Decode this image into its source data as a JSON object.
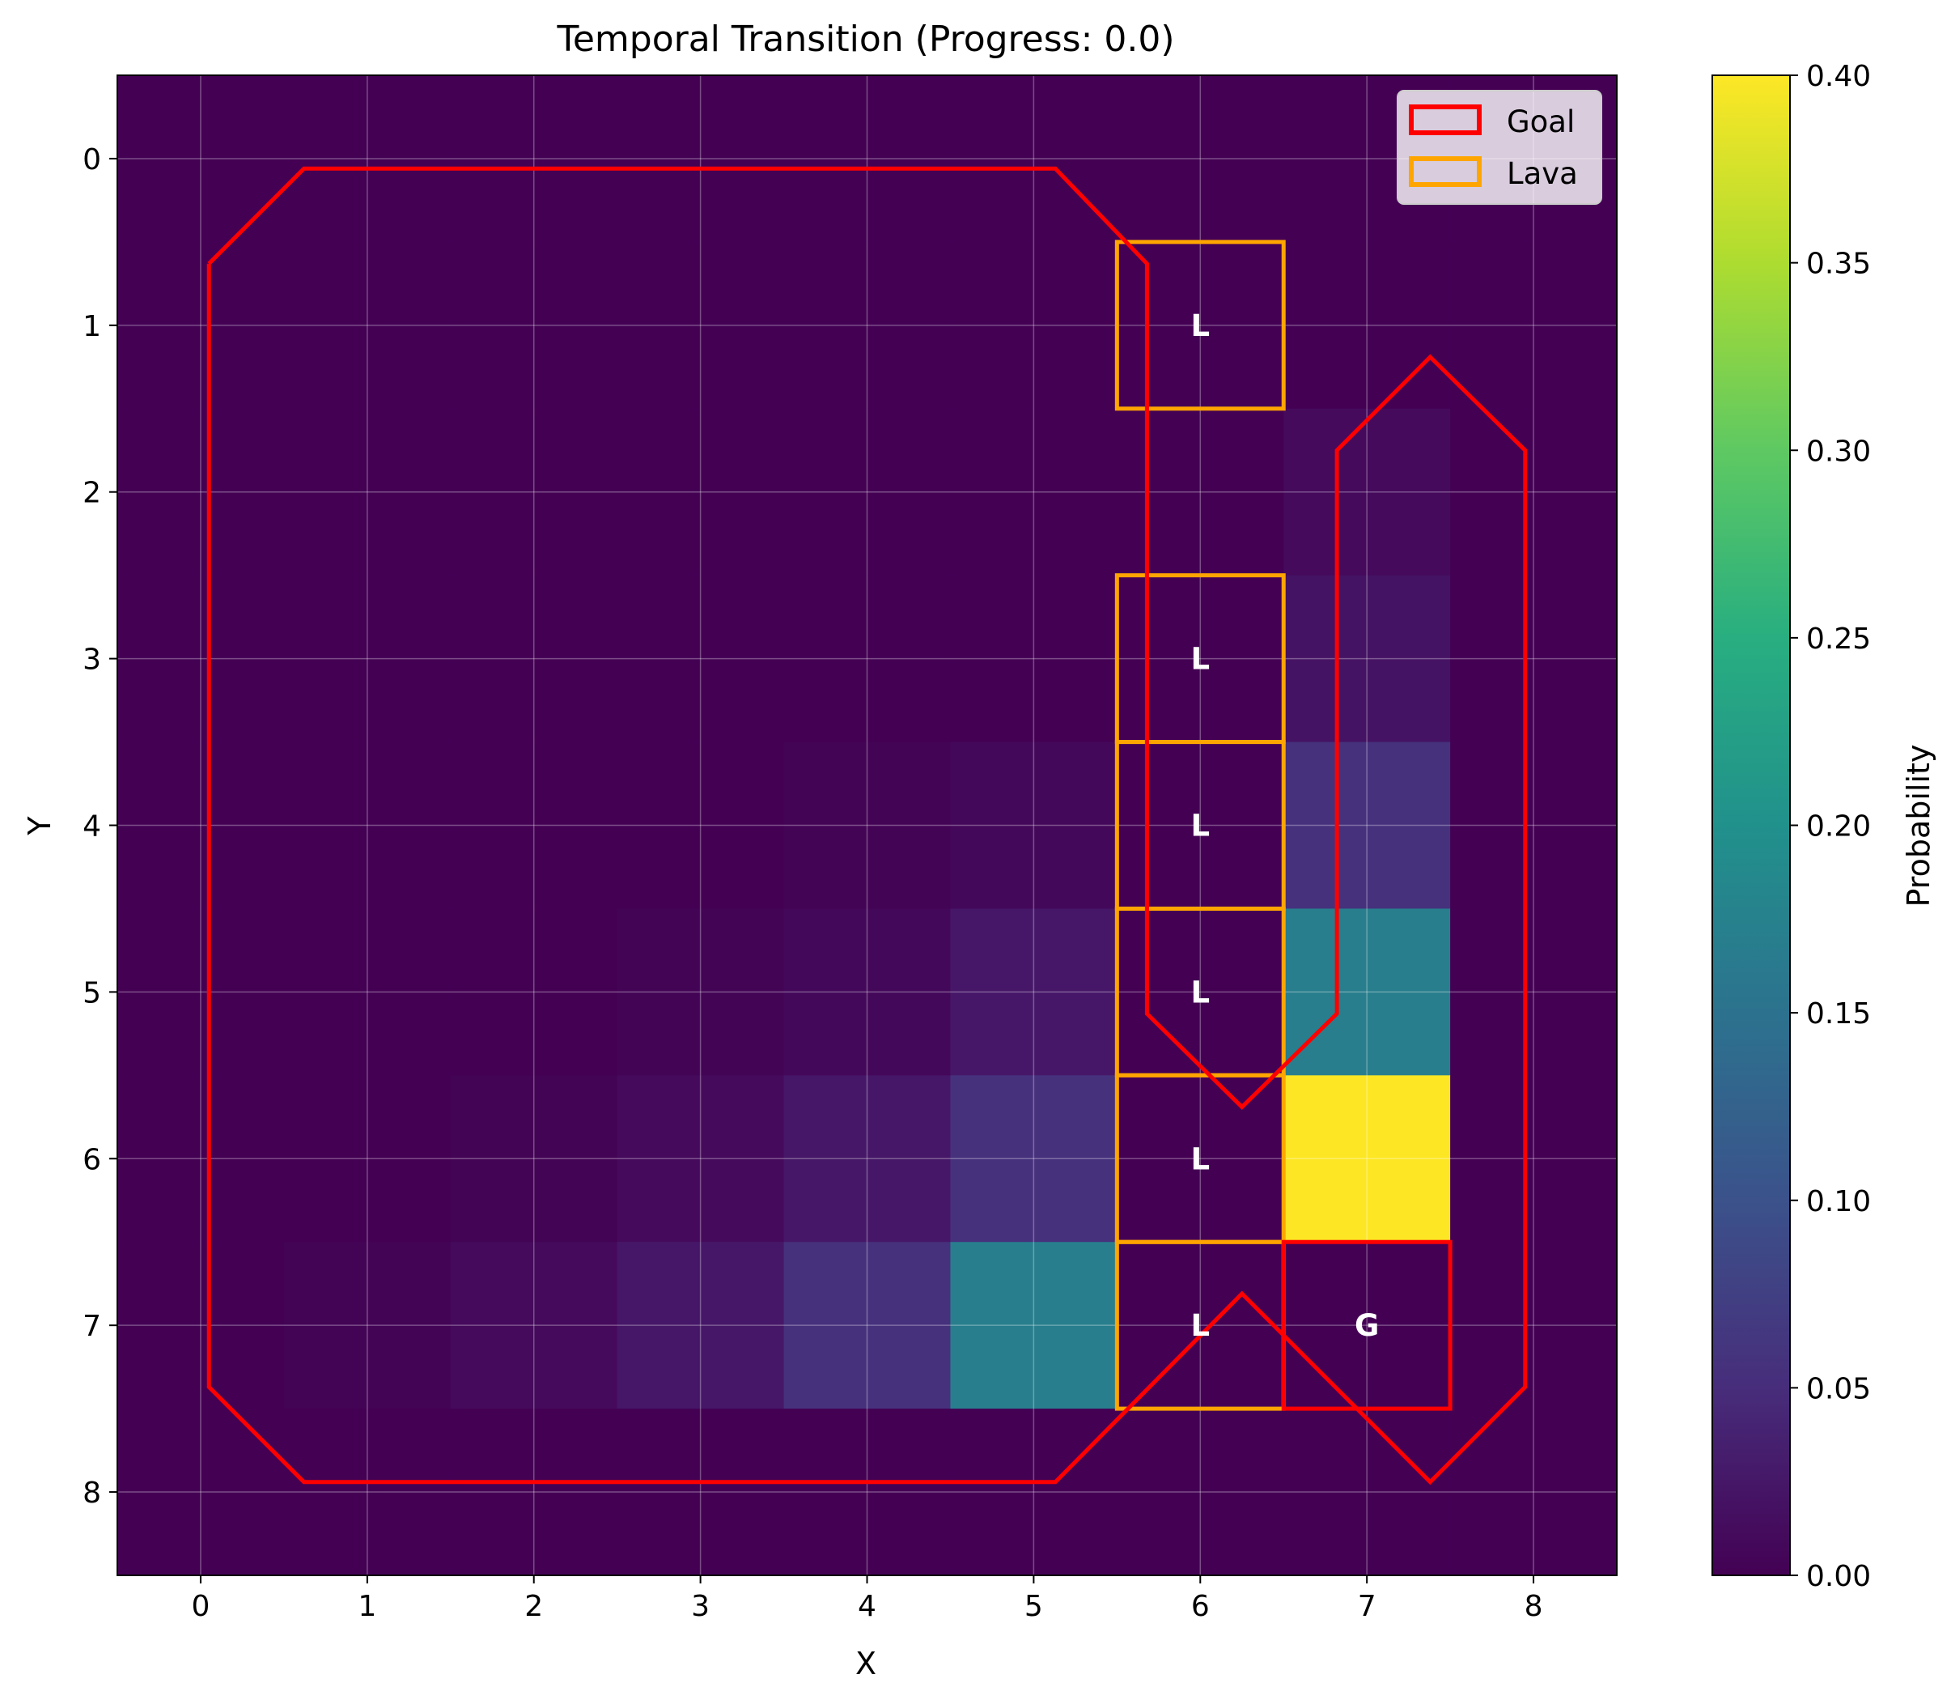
{
  "chart_data": {
    "type": "heatmap",
    "title": "Temporal Transition (Progress: 0.0)",
    "xlabel": "X",
    "ylabel": "Y",
    "x_ticks": [
      0,
      1,
      2,
      3,
      4,
      5,
      6,
      7,
      8
    ],
    "y_ticks": [
      0,
      1,
      2,
      3,
      4,
      5,
      6,
      7,
      8
    ],
    "xlim": [
      -0.5,
      8.5
    ],
    "ylim": [
      8.5,
      -0.5
    ],
    "y_inverted": true,
    "grid": true,
    "colormap": "viridis",
    "colorbar": {
      "label": "Probability",
      "range": [
        0.0,
        0.4
      ],
      "ticks": [
        0.0,
        0.05,
        0.1,
        0.15,
        0.2,
        0.25,
        0.3,
        0.35,
        0.4
      ],
      "tick_labels": [
        "0.00",
        "0.05",
        "0.10",
        "0.15",
        "0.20",
        "0.25",
        "0.30",
        "0.35",
        "0.40"
      ]
    },
    "grid_values": [
      [
        0,
        0,
        0,
        0,
        0,
        0,
        0,
        0,
        0
      ],
      [
        0,
        0,
        0,
        0,
        0,
        0,
        0,
        0,
        0
      ],
      [
        0,
        0,
        0,
        0,
        0,
        0,
        0,
        0.01,
        0
      ],
      [
        0,
        0,
        0,
        0,
        0,
        0,
        0,
        0.02,
        0
      ],
      [
        0,
        0,
        0,
        0,
        0.003,
        0.008,
        0,
        0.055,
        0
      ],
      [
        0,
        0,
        0,
        0.003,
        0.008,
        0.025,
        0,
        0.17,
        0
      ],
      [
        0,
        0,
        0.003,
        0.01,
        0.025,
        0.055,
        0,
        0.4,
        0
      ],
      [
        0,
        0.003,
        0.01,
        0.025,
        0.055,
        0.17,
        0,
        0,
        0
      ],
      [
        0,
        0,
        0,
        0,
        0,
        0,
        0,
        0,
        0
      ]
    ],
    "lava_cells": [
      [
        6,
        1
      ],
      [
        6,
        3
      ],
      [
        6,
        4
      ],
      [
        6,
        5
      ],
      [
        6,
        6
      ],
      [
        6,
        7
      ]
    ],
    "goal_cell": [
      7,
      7
    ],
    "cell_labels": [
      {
        "x": 6,
        "y": 1,
        "text": "L"
      },
      {
        "x": 6,
        "y": 3,
        "text": "L"
      },
      {
        "x": 6,
        "y": 4,
        "text": "L"
      },
      {
        "x": 6,
        "y": 5,
        "text": "L"
      },
      {
        "x": 6,
        "y": 6,
        "text": "L"
      },
      {
        "x": 6,
        "y": 7,
        "text": "L"
      },
      {
        "x": 7,
        "y": 7,
        "text": "G"
      }
    ],
    "goal_outlines": [
      [
        [
          0.05,
          0.63
        ],
        [
          0.62,
          0.06
        ],
        [
          5.13,
          0.06
        ],
        [
          5.68,
          0.63
        ],
        [
          5.68,
          5.13
        ],
        [
          6.25,
          5.69
        ],
        [
          6.82,
          5.13
        ],
        [
          6.82,
          1.75
        ],
        [
          7.38,
          1.19
        ],
        [
          7.95,
          1.75
        ],
        [
          7.95,
          7.37
        ],
        [
          7.38,
          7.94
        ],
        [
          6.25,
          6.81
        ],
        [
          5.13,
          7.94
        ],
        [
          0.62,
          7.94
        ],
        [
          0.05,
          7.37
        ],
        [
          0.05,
          0.63
        ]
      ]
    ],
    "legend": {
      "position": "top-right",
      "entries": [
        {
          "label": "Goal",
          "color": "#ff0000"
        },
        {
          "label": "Lava",
          "color": "#ffa500"
        }
      ]
    },
    "colors": {
      "goal": "#ff0000",
      "lava": "#ffa500",
      "cell_text": "#ffffff",
      "grid": "#ffffff"
    }
  }
}
